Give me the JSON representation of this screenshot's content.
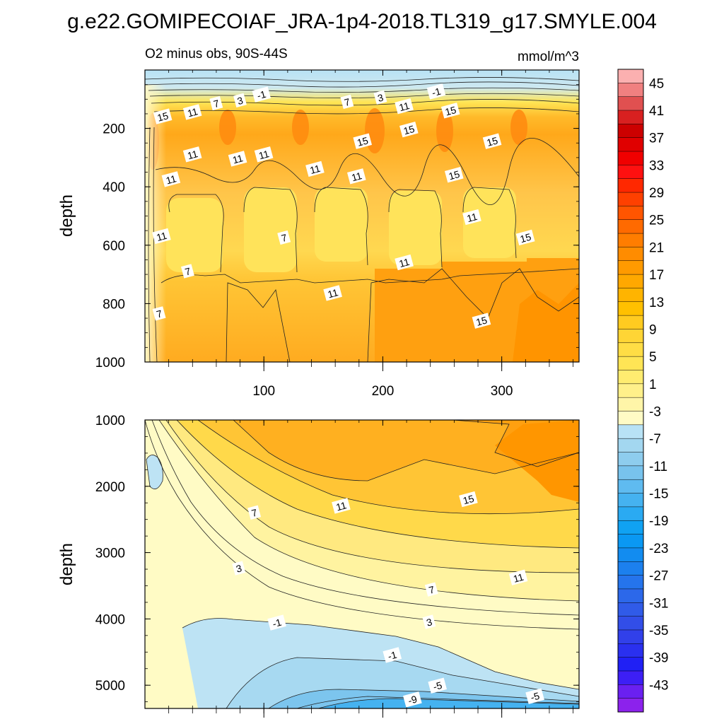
{
  "figure": {
    "title": "g.e22.GOMIPECOIAF_JRA-1p4-2018.TL319_g17.SMYLE.004",
    "subtitle_left": "O2 minus obs, 90S-44S",
    "subtitle_right": "mmol/m^3"
  },
  "chart_data": {
    "type": "heatmap",
    "title": "g.e22.GOMIPECOIAF_JRA-1p4-2018.TL319_g17.SMYLE.004",
    "variable": "O2 minus obs, 90S-44S",
    "units": "mmol/m^3",
    "xlim": [
      0,
      365
    ],
    "x_ticks": [
      "100",
      "200",
      "300"
    ],
    "x_tick_values": [
      100,
      200,
      300
    ],
    "panels": [
      {
        "name": "upper",
        "ylabel": "depth",
        "ylim": [
          0,
          1000
        ],
        "y_ticks": [
          "200",
          "400",
          "600",
          "800",
          "1000"
        ],
        "y_tick_values": [
          200,
          400,
          600,
          800,
          1000
        ],
        "inverted_y": true,
        "depth_profile": [
          {
            "depth": 30,
            "value": -3
          },
          {
            "depth": 60,
            "value": 1
          },
          {
            "depth": 100,
            "value": 9
          },
          {
            "depth": 180,
            "value": 14
          },
          {
            "depth": 300,
            "value": 11
          },
          {
            "depth": 500,
            "value": 8
          },
          {
            "depth": 700,
            "value": 11
          },
          {
            "depth": 900,
            "value": 14
          }
        ],
        "contour_labels": [
          {
            "x": 98,
            "depth": 85,
            "text": "-1"
          },
          {
            "x": 245,
            "depth": 75,
            "text": "-1"
          },
          {
            "x": 80,
            "depth": 105,
            "text": "3"
          },
          {
            "x": 198,
            "depth": 95,
            "text": "3"
          },
          {
            "x": 60,
            "depth": 115,
            "text": "7"
          },
          {
            "x": 170,
            "depth": 110,
            "text": "7"
          },
          {
            "x": 15,
            "depth": 160,
            "text": "15"
          },
          {
            "x": 40,
            "depth": 145,
            "text": "11"
          },
          {
            "x": 218,
            "depth": 125,
            "text": "11"
          },
          {
            "x": 257,
            "depth": 140,
            "text": "15"
          },
          {
            "x": 222,
            "depth": 205,
            "text": "15"
          },
          {
            "x": 183,
            "depth": 245,
            "text": "15"
          },
          {
            "x": 292,
            "depth": 245,
            "text": "15"
          },
          {
            "x": 40,
            "depth": 290,
            "text": "11"
          },
          {
            "x": 78,
            "depth": 305,
            "text": "11"
          },
          {
            "x": 100,
            "depth": 290,
            "text": "11"
          },
          {
            "x": 143,
            "depth": 340,
            "text": "11"
          },
          {
            "x": 178,
            "depth": 365,
            "text": "11"
          },
          {
            "x": 260,
            "depth": 360,
            "text": "15"
          },
          {
            "x": 22,
            "depth": 375,
            "text": "11"
          },
          {
            "x": 275,
            "depth": 505,
            "text": "11"
          },
          {
            "x": 320,
            "depth": 575,
            "text": "15"
          },
          {
            "x": 14,
            "depth": 570,
            "text": "11"
          },
          {
            "x": 117,
            "depth": 575,
            "text": "7"
          },
          {
            "x": 36,
            "depth": 690,
            "text": "7"
          },
          {
            "x": 218,
            "depth": 660,
            "text": "11"
          },
          {
            "x": 158,
            "depth": 765,
            "text": "11"
          },
          {
            "x": 283,
            "depth": 860,
            "text": "15"
          },
          {
            "x": 12,
            "depth": 835,
            "text": "7"
          }
        ]
      },
      {
        "name": "lower",
        "ylabel": "depth",
        "ylim": [
          1000,
          5350
        ],
        "y_ticks": [
          "1000",
          "2000",
          "3000",
          "4000",
          "5000"
        ],
        "y_tick_values": [
          1000,
          2000,
          3000,
          4000,
          5000
        ],
        "inverted_y": true,
        "contour_labels": [
          {
            "x": 272,
            "depth": 2200,
            "text": "15"
          },
          {
            "x": 165,
            "depth": 2300,
            "text": "11"
          },
          {
            "x": 92,
            "depth": 2400,
            "text": "7"
          },
          {
            "x": 314,
            "depth": 3380,
            "text": "11"
          },
          {
            "x": 79,
            "depth": 3240,
            "text": "3"
          },
          {
            "x": 241,
            "depth": 3560,
            "text": "7"
          },
          {
            "x": 239,
            "depth": 4050,
            "text": "3"
          },
          {
            "x": 111,
            "depth": 4060,
            "text": "-1"
          },
          {
            "x": 208,
            "depth": 4550,
            "text": "-1"
          },
          {
            "x": 246,
            "depth": 5010,
            "text": "-5"
          },
          {
            "x": 328,
            "depth": 5170,
            "text": "-5"
          },
          {
            "x": 225,
            "depth": 5220,
            "text": "-9"
          }
        ]
      }
    ],
    "colorbar": {
      "labels": [
        "45",
        "41",
        "37",
        "33",
        "29",
        "25",
        "21",
        "17",
        "13",
        "9",
        "5",
        "1",
        "-3",
        "-7",
        "-11",
        "-15",
        "-19",
        "-23",
        "-27",
        "-31",
        "-35",
        "-39",
        "-43"
      ],
      "levels": [
        45,
        41,
        37,
        33,
        29,
        25,
        21,
        17,
        13,
        9,
        5,
        1,
        -3,
        -7,
        -11,
        -15,
        -19,
        -23,
        -27,
        -31,
        -35,
        -39,
        -43
      ],
      "colors": [
        "#fbb0b0",
        "#f08080",
        "#e05050",
        "#d82020",
        "#cc0000",
        "#e00000",
        "#f00000",
        "#ff1010",
        "#ff2800",
        "#ff4000",
        "#ff5500",
        "#ff6a00",
        "#ff7d00",
        "#ff8c00",
        "#ff9a00",
        "#ffa800",
        "#ffb400",
        "#ffc000",
        "#ffcb20",
        "#ffd535",
        "#ffdd45",
        "#ffe555",
        "#ffec70",
        "#fff08a",
        "#fff5a8",
        "#fffbc5",
        "#b8e2f5",
        "#a3d7f0",
        "#8ecdee",
        "#78c3ed",
        "#5fbbf0",
        "#45b2f0",
        "#2aaaf2",
        "#10a2f3",
        "#0a98f3",
        "#128cf0",
        "#1c80ee",
        "#2574ec",
        "#2c68ea",
        "#305be8",
        "#324ee8",
        "#3140ea",
        "#2a30ef",
        "#2020f5",
        "#3d1ff5",
        "#6a20f0",
        "#8c22ec"
      ]
    }
  }
}
